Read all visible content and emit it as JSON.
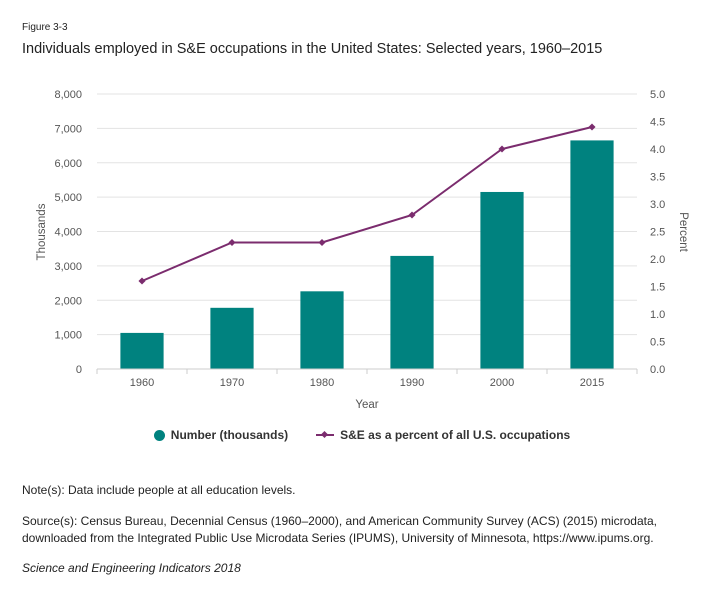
{
  "figure": {
    "label": "Figure 3-3",
    "title": "Individuals employed in S&E occupations in the United States: Selected years, 1960–2015"
  },
  "chart_data": {
    "type": "bar+line",
    "categories": [
      "1960",
      "1970",
      "1980",
      "1990",
      "2000",
      "2015"
    ],
    "series": [
      {
        "name": "Number (thousands)",
        "type": "bar",
        "axis": "left",
        "values": [
          1050,
          1780,
          2260,
          3290,
          5150,
          6650
        ],
        "color": "#00827f"
      },
      {
        "name": "S&E as a percent of all U.S. occupations",
        "type": "line",
        "axis": "right",
        "values": [
          1.6,
          2.3,
          2.3,
          2.8,
          4.0,
          4.4
        ],
        "color": "#7b2c6e"
      }
    ],
    "xlabel": "Year",
    "ylabel_left": "Thousands",
    "ylabel_right": "Percent",
    "ylim_left": [
      0,
      8000
    ],
    "ylim_right": [
      0,
      5.0
    ],
    "yticks_left": [
      "0",
      "1,000",
      "2,000",
      "3,000",
      "4,000",
      "5,000",
      "6,000",
      "7,000",
      "8,000"
    ],
    "yticks_right": [
      "0.0",
      "0.5",
      "1.0",
      "1.5",
      "2.0",
      "2.5",
      "3.0",
      "3.5",
      "4.0",
      "4.5",
      "5.0"
    ],
    "grid": true,
    "legend_position": "bottom"
  },
  "notes": {
    "note": "Note(s): Data include people at all education levels.",
    "source": "Source(s): Census Bureau, Decennial Census (1960–2000), and American Community Survey (ACS) (2015) microdata, downloaded from the Integrated Public Use Microdata Series (IPUMS), University of Minnesota, https://www.ipums.org.",
    "publication": "Science and Engineering Indicators 2018"
  }
}
